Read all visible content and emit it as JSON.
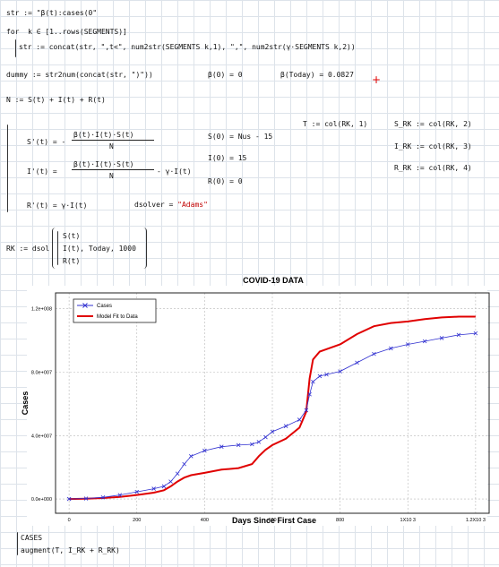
{
  "worksheet": {
    "line1": "str := \"β(t):cases(0\"",
    "line2a": "for  k ∈ [1..rows(SEGMENTS)]",
    "line2b": "str := concat(str, \",t<\", num2str(SEGMENTS k,1), \",\", num2str(γ·SEGMENTS k,2))",
    "line3": "dummy := str2num(concat(str, \")\"))",
    "beta0": "β(0) = 0",
    "betaToday": "β(Today) = 0.0827",
    "nEq": "N := S(t) + I(t) + R(t)",
    "sEq": "S'(t) = -",
    "sFracNum": "β(t)·I(t)·S(t)",
    "sFracDen": "N",
    "iEq": "I'(t) =",
    "iFracNum": "β(t)·I(t)·S(t)",
    "iFracDen": "N",
    "iTail": "- γ·I(t)",
    "rEq": "R'(t) = γ·I(t)",
    "s0": "S(0) = Nus - 15",
    "i0": "I(0) = 15",
    "r0": "R(0) = 0",
    "dsolver": "dsolver = ",
    "dsolverVal": "\"Adams\"",
    "tDef": "T := col(RK, 1)",
    "sRkDef": "S_RK := col(RK, 2)",
    "iRkDef": "I_RK := col(RK, 3)",
    "rRkDef": "R_RK := col(RK, 4)",
    "rkPrefix": "RK := dsol",
    "rkS": "S(t)",
    "rkI": "I(t), Today, 1000",
    "rkR": "R(t)",
    "cases": "CASES",
    "augment": "augment(T, I_RK + R_RK)"
  },
  "colors": {
    "cases": "#3030d0",
    "model": "#e00000",
    "red_text": "#c00000"
  },
  "chart_data": {
    "type": "line",
    "title": "COVID-19 DATA",
    "xlabel": "Days Since First Case",
    "ylabel": "Cases",
    "xlim": [
      -40,
      1240
    ],
    "ylim": [
      -9000000,
      130000000
    ],
    "xticks": [
      0,
      200,
      400,
      600,
      800,
      1000,
      1200
    ],
    "xtick_labels": [
      "0",
      "200",
      "400",
      "600",
      "800",
      "1X10 3",
      "1.2X10 3"
    ],
    "yticks": [
      0,
      40000000,
      80000000,
      120000000
    ],
    "ytick_labels": [
      "0.0e+000",
      "4.0e+007",
      "8.0e+007",
      "1.2e+008"
    ],
    "grid": true,
    "legend": "top-left",
    "series": [
      {
        "name": "Cases",
        "marker": "x",
        "x": [
          0,
          50,
          100,
          150,
          200,
          250,
          280,
          300,
          320,
          340,
          360,
          400,
          450,
          500,
          540,
          560,
          580,
          600,
          640,
          680,
          700,
          710,
          720,
          740,
          760,
          800,
          850,
          900,
          950,
          1000,
          1050,
          1100,
          1150,
          1200
        ],
        "y": [
          0,
          300000,
          1000000,
          2500000,
          4500000,
          6500000,
          8000000,
          11000000,
          16000000,
          22000000,
          27000000,
          30500000,
          33000000,
          34000000,
          34500000,
          36000000,
          39000000,
          42500000,
          46000000,
          50000000,
          56000000,
          66000000,
          74000000,
          77500000,
          78500000,
          80500000,
          86000000,
          91500000,
          95000000,
          97500000,
          99500000,
          101500000,
          103500000,
          104500000
        ]
      },
      {
        "name": "Model Fit to Data",
        "x": [
          0,
          50,
          100,
          150,
          200,
          250,
          280,
          300,
          320,
          340,
          360,
          400,
          450,
          500,
          540,
          560,
          580,
          600,
          640,
          680,
          700,
          710,
          720,
          740,
          760,
          800,
          850,
          900,
          950,
          1000,
          1050,
          1100,
          1150,
          1200
        ],
        "y": [
          0,
          200000,
          600000,
          1300000,
          2500000,
          4000000,
          5500000,
          8000000,
          11000000,
          13500000,
          15000000,
          16500000,
          18500000,
          19500000,
          22000000,
          27000000,
          31000000,
          34000000,
          38000000,
          45000000,
          55000000,
          76000000,
          88000000,
          93000000,
          94500000,
          97500000,
          104000000,
          109000000,
          111000000,
          112000000,
          113500000,
          114500000,
          115000000,
          115000000
        ]
      }
    ]
  }
}
